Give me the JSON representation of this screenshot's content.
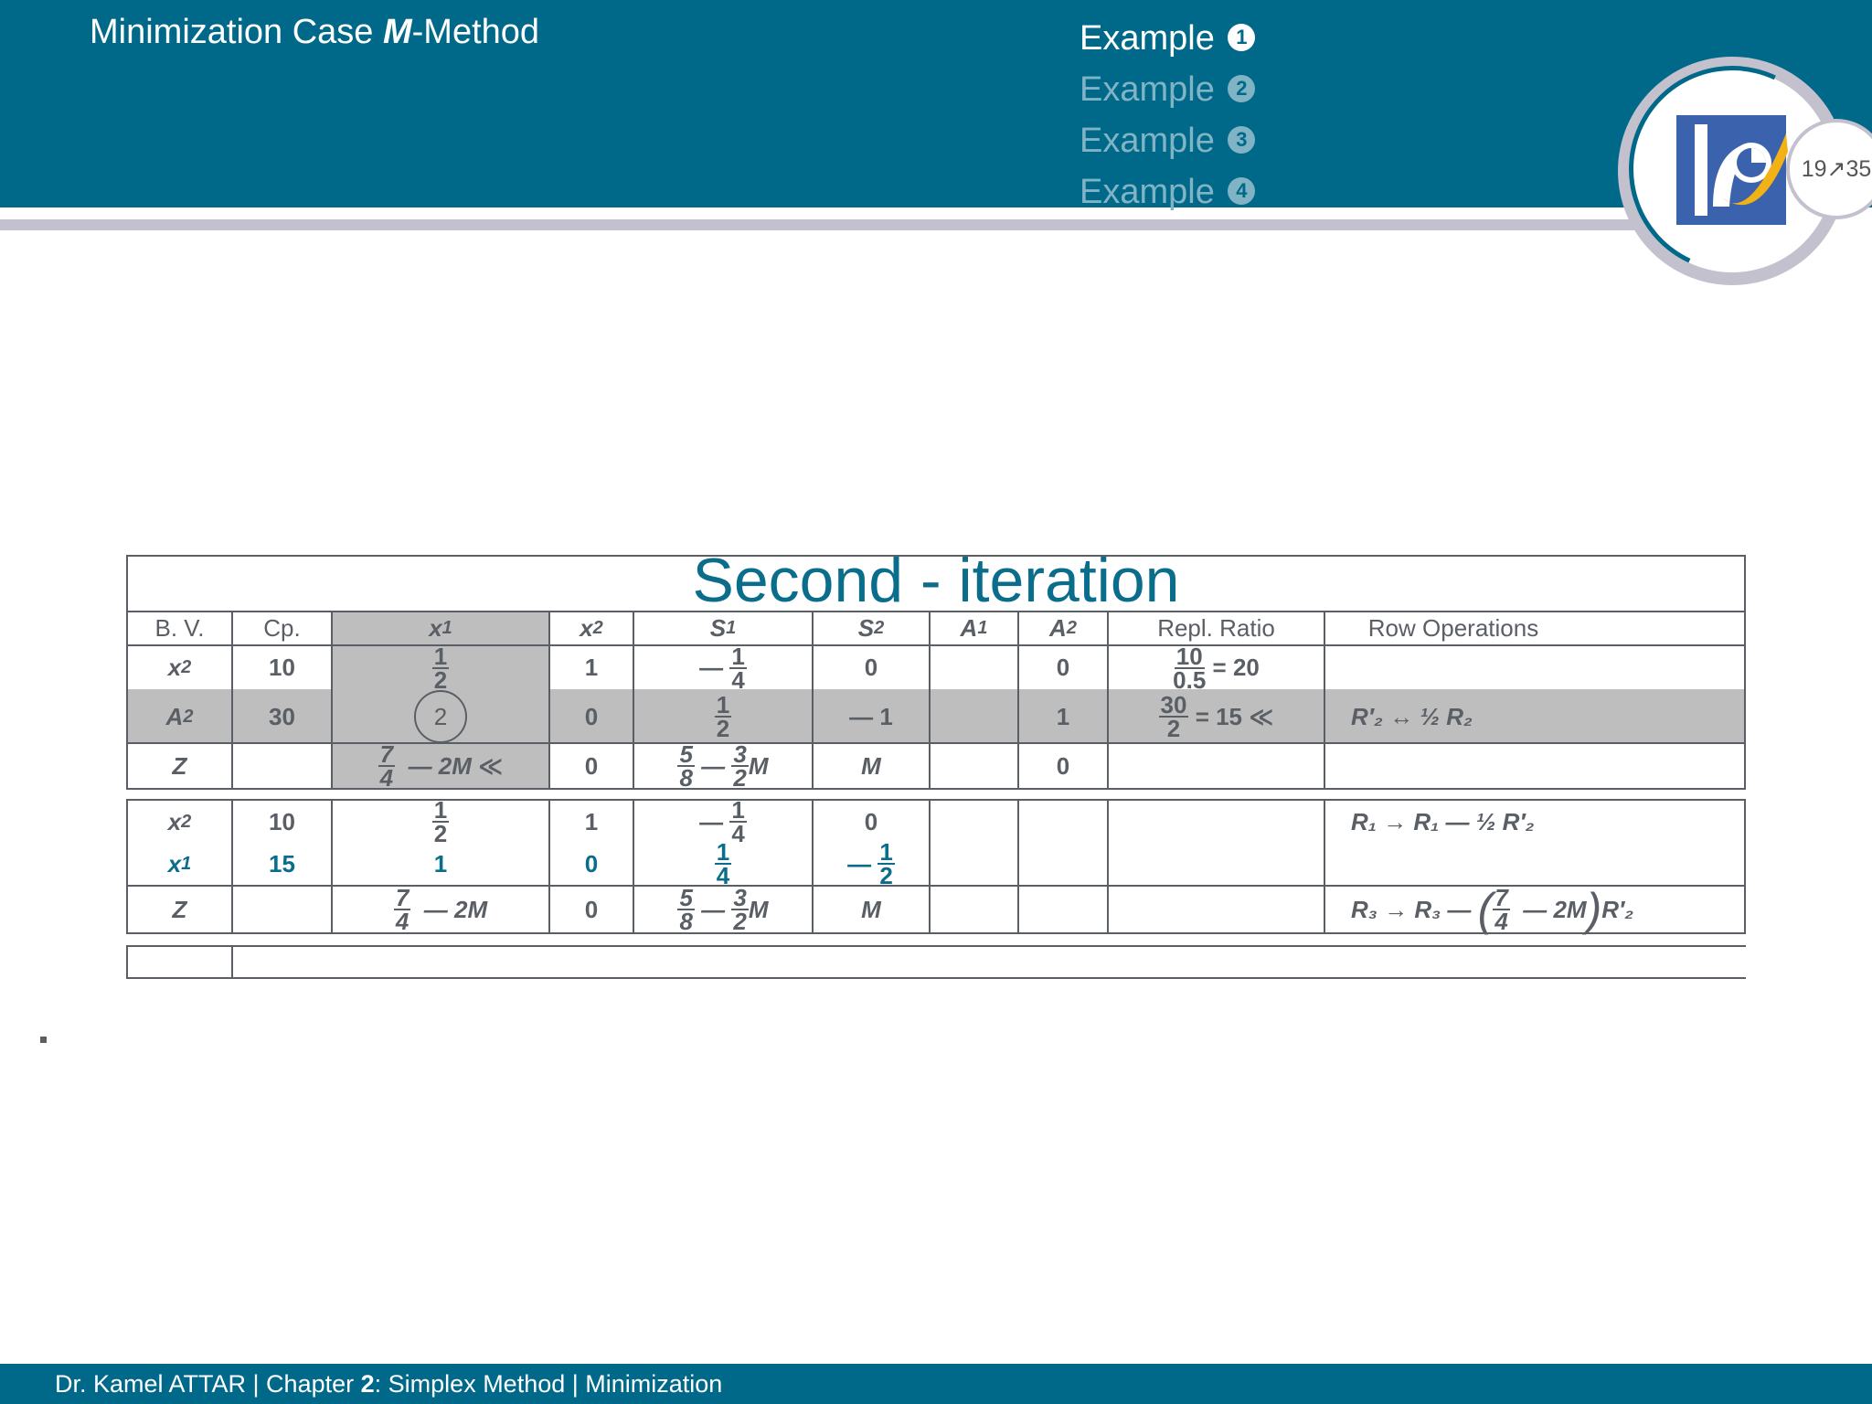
{
  "header": {
    "section_title_pre": "Minimization Case ",
    "section_title_m": "M",
    "section_title_post": "-Method",
    "examples": [
      {
        "label": "Example",
        "num": "1",
        "active": true
      },
      {
        "label": "Example",
        "num": "2",
        "active": false
      },
      {
        "label": "Example",
        "num": "3",
        "active": false
      },
      {
        "label": "Example",
        "num": "4",
        "active": false
      }
    ],
    "page": "19",
    "page_arrow": "↗",
    "total": "35"
  },
  "table": {
    "title": "Second - iteration",
    "headers": [
      "B. V.",
      "Cp.",
      "x",
      "x",
      "S",
      "S",
      "A",
      "A",
      "Repl. Ratio",
      "Row Operations"
    ],
    "header_subs": [
      "",
      "",
      "1",
      "2",
      "1",
      "2",
      "1",
      "2",
      "",
      ""
    ],
    "t1": {
      "r1": {
        "bv": "x",
        "bv_sub": "2",
        "cp": "10",
        "x1_num": "1",
        "x1_den": "2",
        "x2": "1",
        "s1_sign": "—",
        "s1_num": "1",
        "s1_den": "4",
        "s2": "0",
        "a2": "0",
        "ratio_num": "10",
        "ratio_den": "0.5",
        "ratio_res": "= 20"
      },
      "r2": {
        "bv": "A",
        "bv_sub": "2",
        "cp": "30",
        "pivot": "2",
        "x2": "0",
        "s1_num": "1",
        "s1_den": "2",
        "s2": "— 1",
        "a2": "1",
        "ratio_num": "30",
        "ratio_den": "2",
        "ratio_res": "= 15 ≪",
        "op": "R′₂ ↔ ½ R₂"
      },
      "z": {
        "label": "Z",
        "x1_num": "7",
        "x1_den": "4",
        "x1_rest": "— 2M ≪",
        "x2": "0",
        "s1_num1": "5",
        "s1_den1": "8",
        "s1_mid": "—",
        "s1_num2": "3",
        "s1_den2": "2",
        "s1_m": "M",
        "s2": "M",
        "a2": "0"
      }
    },
    "t2": {
      "r1": {
        "bv": "x",
        "bv_sub": "2",
        "cp": "10",
        "x1_num": "1",
        "x1_den": "2",
        "x2": "1",
        "s1_sign": "—",
        "s1_num": "1",
        "s1_den": "4",
        "s2": "0",
        "op": "R₁ → R₁ — ½ R′₂"
      },
      "r2": {
        "bv": "x",
        "bv_sub": "1",
        "cp": "15",
        "x1": "1",
        "x2": "0",
        "s1_num": "1",
        "s1_den": "4",
        "s2_sign": "—",
        "s2_num": "1",
        "s2_den": "2"
      },
      "z": {
        "label": "Z",
        "x1_num": "7",
        "x1_den": "4",
        "x1_rest": "— 2M",
        "x2": "0",
        "s1_num1": "5",
        "s1_den1": "8",
        "s1_mid": "—",
        "s1_num2": "3",
        "s1_den2": "2",
        "s1_m": "M",
        "s2": "M",
        "op_pre": "R₃ → R₃ —",
        "op_num": "7",
        "op_den": "4",
        "op_rest": "— 2M",
        "op_post": "R′₂"
      }
    }
  },
  "footer": {
    "author": "Dr. Kamel ATTAR | Chapter ",
    "chapter": "2",
    "rest": ": Simplex Method | Minimization"
  },
  "colors": {
    "header_bg": "#00698a",
    "teal_text": "#0a6d8b",
    "shade": "#bebebe",
    "band": "#c3c1ce"
  }
}
